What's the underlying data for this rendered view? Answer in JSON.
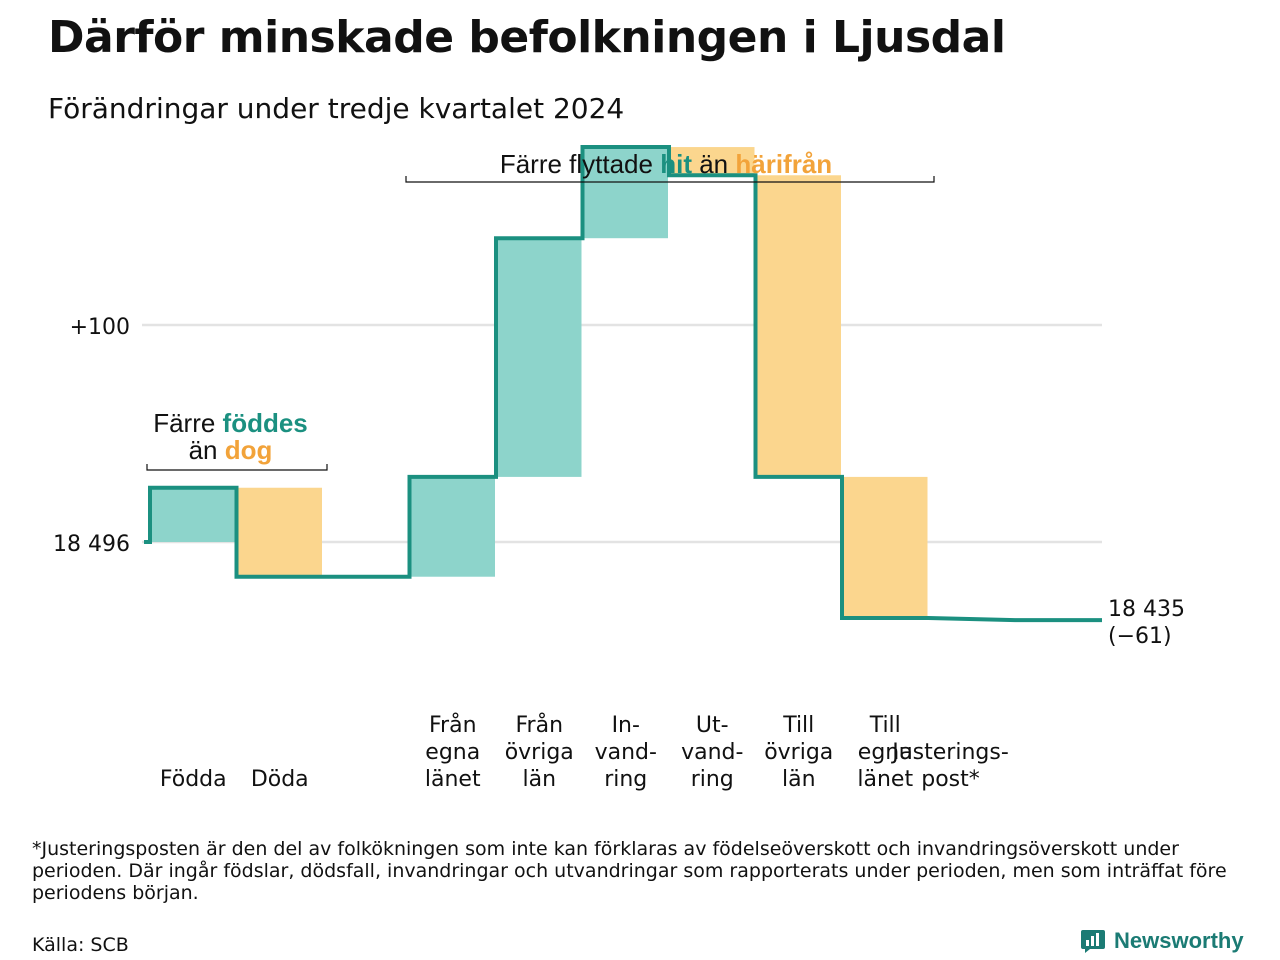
{
  "header": {
    "title": "Därför minskade befolkningen i Ljusdal",
    "subtitle": "Förändringar under tredje kvartalet 2024"
  },
  "chart_data": {
    "type": "waterfall",
    "start_value": 18496,
    "start_label": "18 496",
    "y_tick_label": "+100",
    "y_tick_value": 100,
    "steps": [
      {
        "label": [
          "Födda"
        ],
        "change": 25,
        "kind": "in"
      },
      {
        "label": [
          "Döda"
        ],
        "change": -41,
        "kind": "out"
      },
      {
        "label": [
          "Från",
          "egna",
          "länet"
        ],
        "change": 46,
        "kind": "in"
      },
      {
        "label": [
          "Från",
          "övriga",
          "län"
        ],
        "change": 110,
        "kind": "in"
      },
      {
        "label": [
          "In-",
          "vand-",
          "ring"
        ],
        "change": 42,
        "kind": "in"
      },
      {
        "label": [
          "Ut-",
          "vand-",
          "ring"
        ],
        "change": -13,
        "kind": "out"
      },
      {
        "label": [
          "Till",
          "övriga",
          "län"
        ],
        "change": -139,
        "kind": "out"
      },
      {
        "label": [
          "Till",
          "egna",
          "länet"
        ],
        "change": -65,
        "kind": "out"
      },
      {
        "label": [
          "Justerings-",
          "post*"
        ],
        "change": -1,
        "kind": "adjust"
      }
    ],
    "end_label": "18 435",
    "change_label": "(−61)",
    "annotations": {
      "birth": {
        "line1_pre": "Färre ",
        "line1_hl": "föddes",
        "line2_pre": "än ",
        "line2_hl": "dog"
      },
      "migration": {
        "pre": "Färre flyttade ",
        "hl1": "hit",
        "mid": " än ",
        "hl2": "härifrån"
      }
    },
    "colors": {
      "in": "#8dd4cb",
      "out": "#fbd68e",
      "line": "#1b9080",
      "grid": "#e3e3e3",
      "hl_teal": "#1b9080",
      "hl_orange": "#f2a33a"
    }
  },
  "footer": {
    "footnote": "*Justeringsposten är den del av folkökningen som inte kan förklaras av födelseöverskott och invandringsöverskott under perioden. Där ingår födslar, dödsfall, invandringar och utvandringar som rapporterats under perioden, men som inträffat före periodens början.",
    "source": "Källa: SCB",
    "brand": "Newsworthy"
  }
}
